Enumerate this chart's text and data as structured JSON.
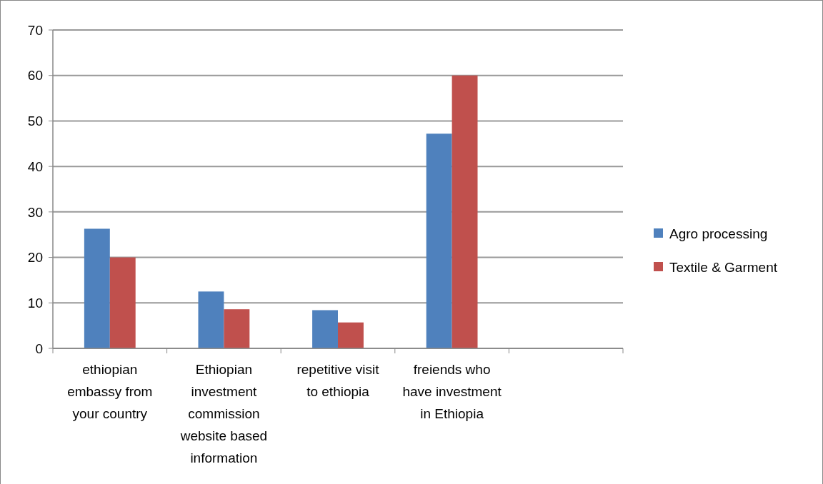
{
  "chart_data": {
    "type": "bar",
    "categories": [
      "ethiopian embassy from your country",
      "Ethiopian investment commission website based information",
      "repetitive visit to ethiopia",
      "freiends who have investment in Ethiopia",
      null
    ],
    "series": [
      {
        "name": "Agro processing",
        "color": "#4f81bd",
        "values": [
          26.3,
          12.5,
          8.4,
          47.2,
          null
        ]
      },
      {
        "name": "Textile & Garment",
        "color": "#c0504d",
        "values": [
          20,
          8.6,
          5.7,
          60,
          null
        ]
      }
    ],
    "ylim": [
      0,
      70
    ],
    "yticks": [
      0,
      10,
      20,
      30,
      40,
      50,
      60,
      70
    ],
    "grid": "y",
    "legend": "right"
  }
}
